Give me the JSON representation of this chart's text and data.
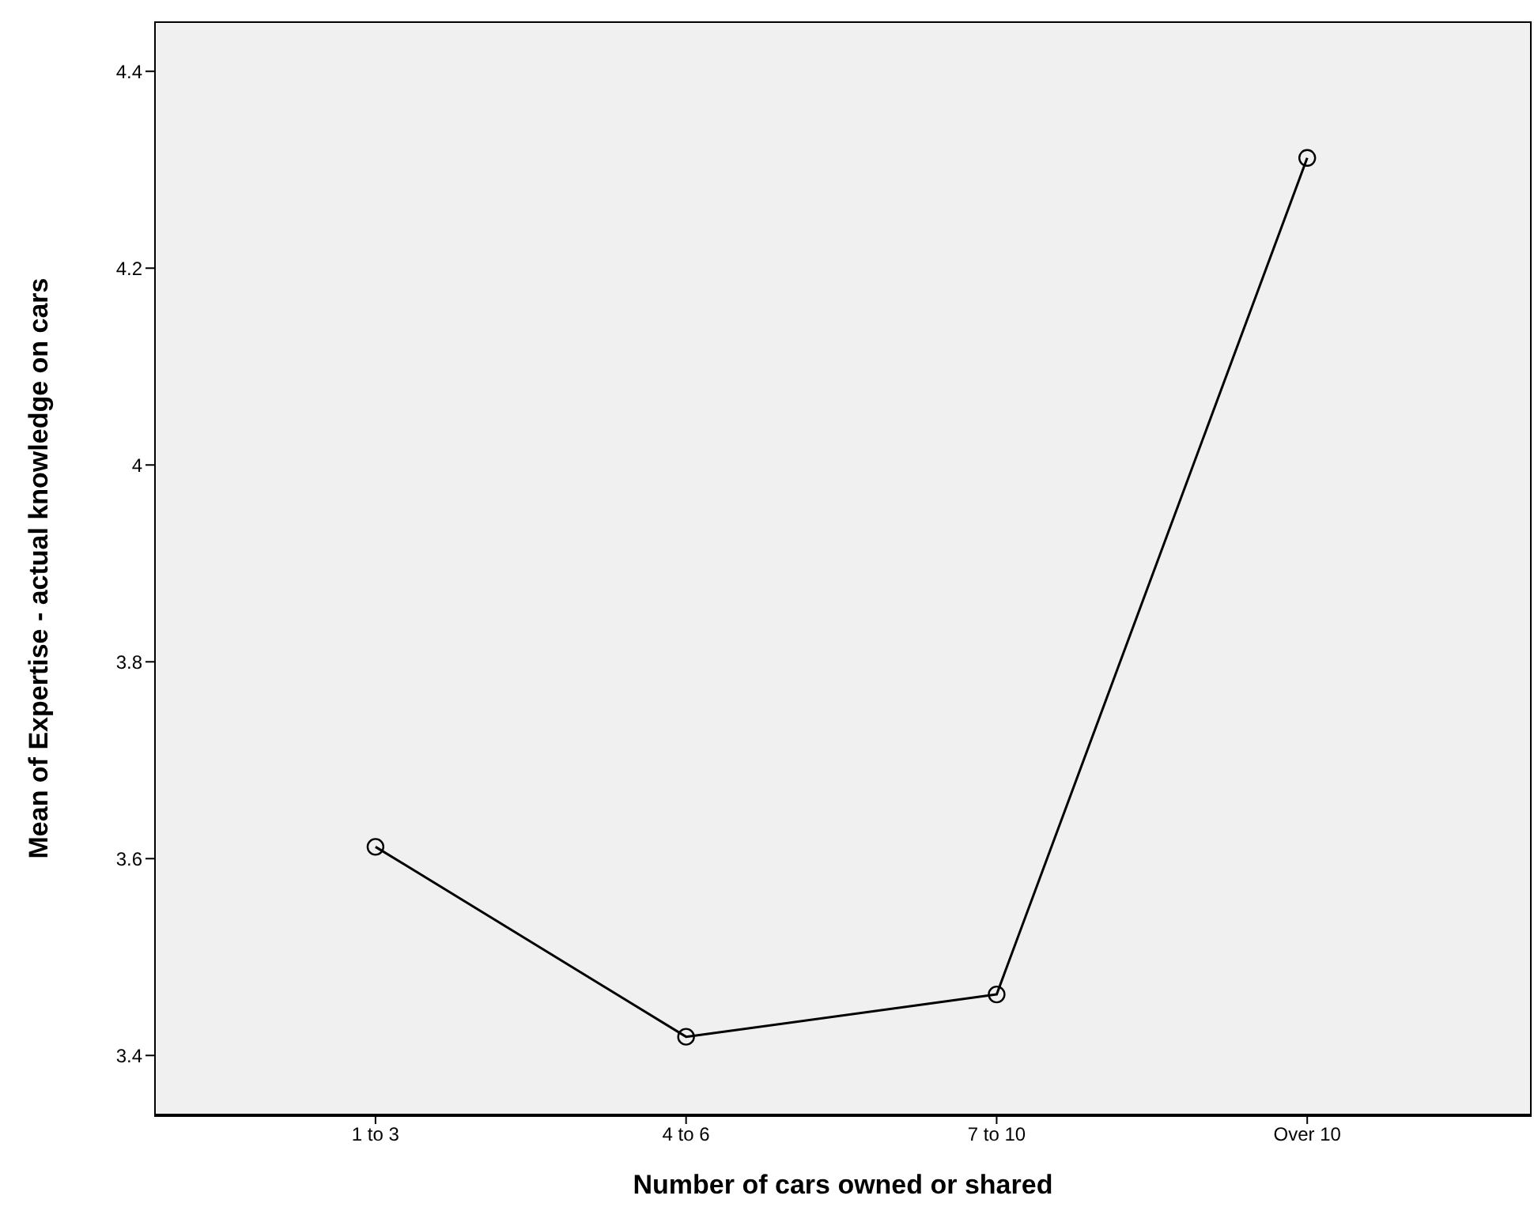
{
  "chart_data": {
    "type": "line",
    "xlabel": "Number of cars owned or shared",
    "ylabel": "Mean of Expertise - actual knowledge on cars",
    "categories": [
      "1 to 3",
      "4 to 6",
      "7 to 10",
      "Over 10"
    ],
    "series": [
      {
        "color": "#000000",
        "values": [
          3.612,
          3.419,
          3.462,
          4.312
        ]
      }
    ],
    "ylim": [
      3.34,
      4.45
    ],
    "yticks": [
      3.4,
      3.6,
      3.8,
      4,
      4.2,
      4.4
    ],
    "marker": "circle",
    "line_style": "solid",
    "legend": false
  }
}
